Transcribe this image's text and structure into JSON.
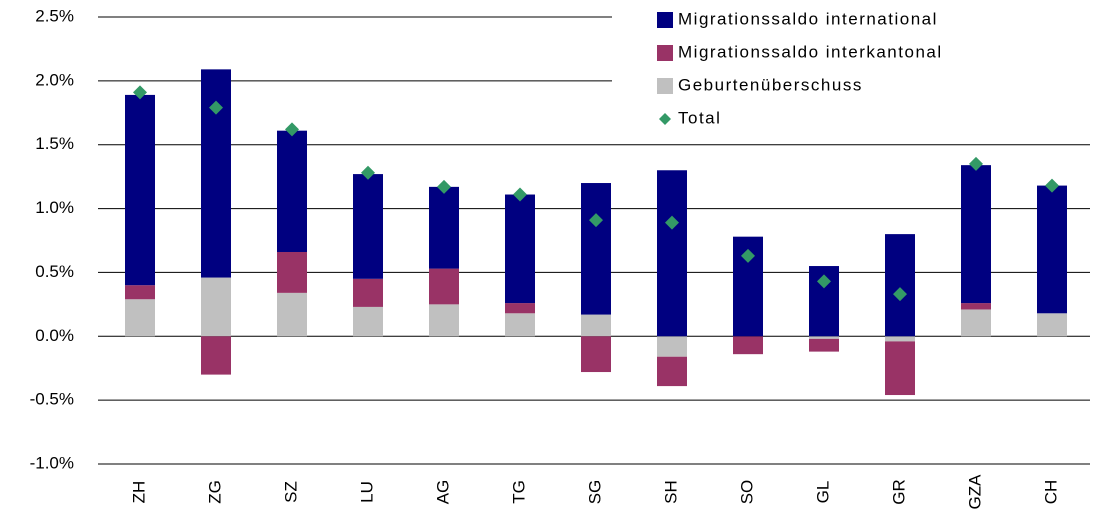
{
  "chart_data": {
    "type": "bar",
    "stacked": true,
    "categories": [
      "ZH",
      "ZG",
      "SZ",
      "LU",
      "AG",
      "TG",
      "SG",
      "SH",
      "SO",
      "GL",
      "GR",
      "GZA",
      "CH"
    ],
    "series": [
      {
        "name": "Migrationssaldo international",
        "color": "#000080",
        "values": [
          1.49,
          1.63,
          0.95,
          0.82,
          0.64,
          0.85,
          1.03,
          1.3,
          0.78,
          0.55,
          0.8,
          1.08,
          1.0
        ]
      },
      {
        "name": "Migrationssaldo interkantonal",
        "color": "#993366",
        "values": [
          0.11,
          -0.3,
          0.32,
          0.22,
          0.28,
          0.08,
          -0.28,
          -0.23,
          -0.14,
          -0.1,
          -0.42,
          0.05,
          0.0
        ]
      },
      {
        "name": "Geburtenüberschuss",
        "color": "#c0c0c0",
        "values": [
          0.29,
          0.46,
          0.34,
          0.23,
          0.25,
          0.18,
          0.17,
          -0.16,
          0.0,
          -0.02,
          -0.04,
          0.21,
          0.18
        ]
      },
      {
        "name": "Total",
        "color": "#339966",
        "type": "scatter",
        "values": [
          1.91,
          1.79,
          1.62,
          1.28,
          1.17,
          1.11,
          0.91,
          0.89,
          0.63,
          0.43,
          0.33,
          1.35,
          1.18
        ]
      }
    ],
    "ylim": [
      -1.0,
      2.5
    ],
    "yticks": [
      {
        "value": -1.0,
        "label": "-1.0%"
      },
      {
        "value": -0.5,
        "label": "-0.5%"
      },
      {
        "value": 0.0,
        "label": "0.0%"
      },
      {
        "value": 0.5,
        "label": "0.5%"
      },
      {
        "value": 1.0,
        "label": "1.0%"
      },
      {
        "value": 1.5,
        "label": "1.5%"
      },
      {
        "value": 2.0,
        "label": "2.0%"
      },
      {
        "value": 2.5,
        "label": "2.5%"
      }
    ],
    "grid": true,
    "legend": "top-right"
  }
}
